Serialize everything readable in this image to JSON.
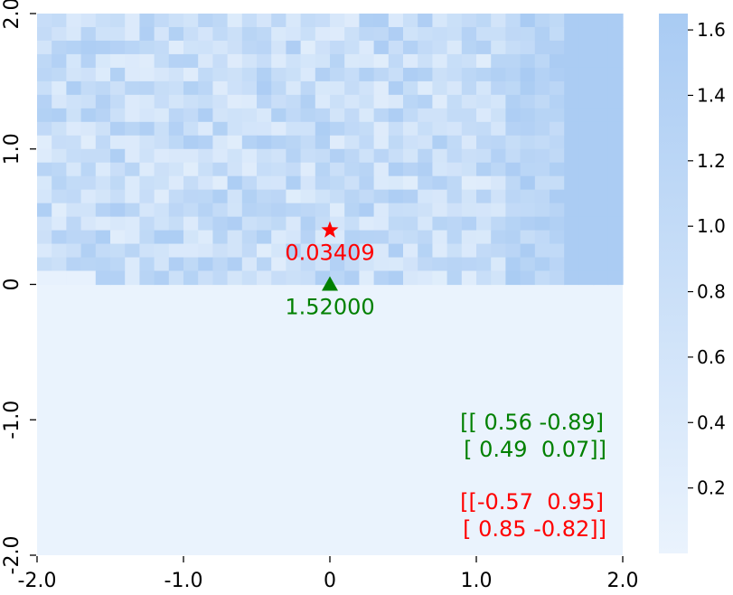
{
  "chart_data": {
    "type": "heatmap",
    "title": "",
    "xlabel": "",
    "ylabel": "",
    "xlim": [
      -2.0,
      2.0
    ],
    "ylim": [
      -2.0,
      2.0
    ],
    "x_ticks": [
      "-2.0",
      "-1.0",
      "0",
      "1.0",
      "2.0"
    ],
    "y_ticks": [
      "-2.0",
      "-1.0",
      "0",
      "1.0",
      "2.0"
    ],
    "colorbar": {
      "range": [
        0.0,
        1.65
      ],
      "ticks": [
        "0.2",
        "0.4",
        "0.6",
        "0.8",
        "1.0",
        "1.2",
        "1.4",
        "1.6"
      ],
      "color_low": "#eaf3fd",
      "color_high": "#a9cbf3"
    },
    "grid_size": 40,
    "shaded_region": "upper half (y > 0) shows variable values; right-side columns near max",
    "markers": [
      {
        "name": "star",
        "x": 0.0,
        "y": 0.4,
        "color": "#ff0000",
        "label": "0.03409"
      },
      {
        "name": "triangle",
        "x": 0.0,
        "y": 0.0,
        "color": "#008000",
        "label": "1.52000"
      }
    ],
    "matrices": [
      {
        "color": "#008000",
        "lines": [
          "[[ 0.56 -0.89]",
          " [ 0.49  0.07]]"
        ]
      },
      {
        "color": "#ff0000",
        "lines": [
          "[[-0.57  0.95]",
          " [ 0.85 -0.82]]"
        ]
      }
    ]
  }
}
